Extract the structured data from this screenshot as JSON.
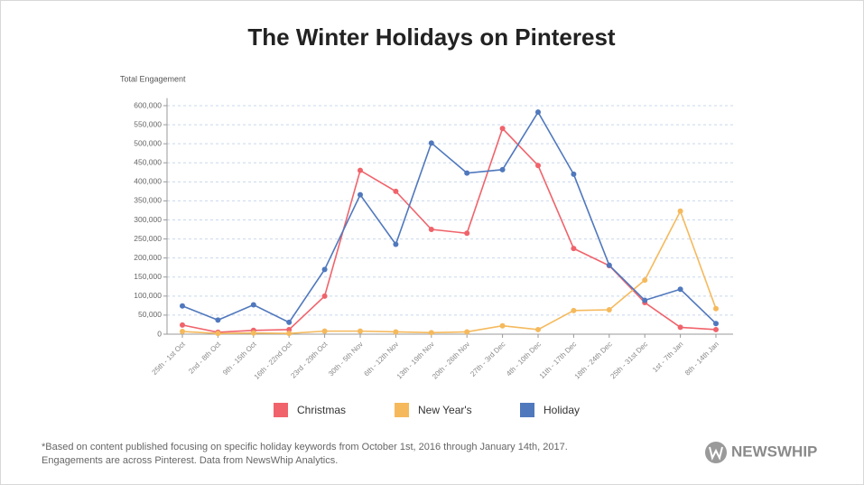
{
  "chart_data": {
    "type": "line",
    "title": "The Winter Holidays on Pinterest",
    "y_label": "Total Engagement",
    "categories": [
      "25th - 1st Oct",
      "2nd - 8th Oct",
      "9th - 15th Oct",
      "16th - 22nd Oct",
      "23rd - 29th Oct",
      "30th - 5th Nov",
      "6th - 12th Nov",
      "13th - 19th Nov",
      "20th - 26th Nov",
      "27th - 3rd Dec",
      "4th - 10th Dec",
      "11th - 17th Dec",
      "18th - 24th Dec",
      "25th - 31st Dec",
      "1st - 7th Jan",
      "8th - 14th Jan"
    ],
    "series": [
      {
        "name": "Christmas",
        "color": "#f0636b",
        "values": [
          24000,
          5000,
          10000,
          12000,
          100000,
          430000,
          375000,
          275000,
          265000,
          540000,
          443000,
          225000,
          180000,
          83000,
          18000,
          12000
        ]
      },
      {
        "name": "New Year's",
        "color": "#f5b95c",
        "values": [
          7000,
          2000,
          3000,
          2000,
          8000,
          8000,
          6000,
          4000,
          6000,
          22000,
          12000,
          62000,
          64000,
          142000,
          323000,
          67000
        ]
      },
      {
        "name": "Holiday",
        "color": "#5078bd",
        "values": [
          74000,
          37000,
          77000,
          31000,
          170000,
          366000,
          236000,
          502000,
          423000,
          432000,
          583000,
          420000,
          181000,
          89000,
          118000,
          28000
        ]
      }
    ],
    "ylim": [
      0,
      620000
    ],
    "yticks": [
      0,
      {
        "value": 50000,
        "label": "50,000"
      },
      {
        "value": 100000,
        "label": "100,000"
      },
      {
        "value": 150000,
        "label": "150,000"
      },
      {
        "value": 200000,
        "label": "200,000"
      },
      {
        "value": 250000,
        "label": "250,000"
      },
      {
        "value": 300000,
        "label": "300,000"
      },
      {
        "value": 350000,
        "label": "350,000"
      },
      {
        "value": 400000,
        "label": "400,000"
      },
      {
        "value": 450000,
        "label": "450,000"
      },
      {
        "value": 500000,
        "label": "500,000"
      },
      {
        "value": 550000,
        "label": "550,000"
      },
      {
        "value": 600000,
        "label": "600,000"
      }
    ],
    "grid": true,
    "footnote": [
      "*Based on content published focusing on specific holiday keywords from October 1st, 2016 through January 14th, 2017.",
      "Engagements are across Pinterest. Data from NewsWhip Analytics."
    ],
    "brand": "NEWSWHIP"
  }
}
